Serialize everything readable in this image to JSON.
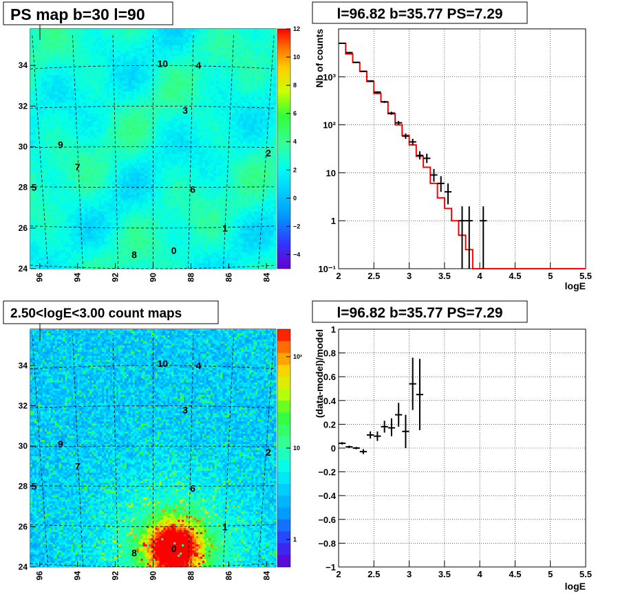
{
  "chart_data": [
    {
      "type": "heatmap",
      "title": "PS map b=30 l=90",
      "xlabel": "",
      "ylabel": "",
      "x_ticks": [
        "96",
        "94",
        "92",
        "90",
        "88",
        "86",
        "84"
      ],
      "y_ticks": [
        "24",
        "26",
        "28",
        "30",
        "32",
        "34"
      ],
      "xlim": [
        96.5,
        83.5
      ],
      "ylim": [
        24,
        35.8
      ],
      "colorbar": {
        "scale": "linear",
        "range": [
          -5,
          12
        ],
        "ticks": [
          "12",
          "10",
          "8",
          "6",
          "4",
          "2",
          "0",
          "−2",
          "−4"
        ]
      },
      "sources": [
        {
          "label": "10",
          "l": 89.5,
          "b": 34.1
        },
        {
          "label": "4",
          "l": 87.6,
          "b": 34.0
        },
        {
          "label": "3",
          "l": 88.3,
          "b": 31.8
        },
        {
          "label": "9",
          "l": 94.9,
          "b": 30.1
        },
        {
          "label": "2",
          "l": 83.9,
          "b": 29.7
        },
        {
          "label": "7",
          "l": 94.0,
          "b": 29.0
        },
        {
          "label": "5",
          "l": 96.3,
          "b": 28.0
        },
        {
          "label": "6",
          "l": 87.9,
          "b": 27.9
        },
        {
          "label": "1",
          "l": 86.2,
          "b": 26.0
        },
        {
          "label": "8",
          "l": 91.0,
          "b": 24.7
        },
        {
          "label": "0",
          "l": 88.9,
          "b": 24.9
        }
      ]
    },
    {
      "type": "line",
      "title": "l=96.82 b=35.77 PS=7.29",
      "xlabel": "logE",
      "ylabel": "Nb of counts",
      "xlim": [
        2,
        5.5
      ],
      "ylim": [
        0.1,
        10000
      ],
      "yscale": "log",
      "grid": true,
      "x_ticks": [
        "2",
        "2.5",
        "3",
        "3.5",
        "4",
        "4.5",
        "5",
        "5.5"
      ],
      "y_ticks": [
        {
          "v": 0.1,
          "t": "10⁻¹"
        },
        {
          "v": 1,
          "t": "1"
        },
        {
          "v": 10,
          "t": "10"
        },
        {
          "v": 100,
          "t": "10²"
        },
        {
          "v": 1000,
          "t": "10³"
        }
      ],
      "series": [
        {
          "kind": "model-histogram",
          "color": "#ff0000",
          "edges": [
            2.0,
            2.1,
            2.2,
            2.3,
            2.4,
            2.5,
            2.6,
            2.7,
            2.8,
            2.9,
            3.0,
            3.1,
            3.2,
            3.3,
            3.4,
            3.5,
            3.6,
            3.7,
            3.8,
            3.9,
            4.0,
            4.1,
            4.2,
            4.3,
            4.4,
            4.5,
            4.6,
            4.7,
            4.8,
            4.9,
            5.0,
            5.1,
            5.2,
            5.3,
            5.4,
            5.5
          ],
          "values": [
            5000,
            3000,
            2000,
            1300,
            800,
            450,
            300,
            170,
            100,
            60,
            38,
            22,
            13,
            6,
            3,
            1.8,
            1.0,
            0.5,
            0.25,
            0.1,
            0.1,
            0.1,
            0.1,
            0.1,
            0.1,
            0.1,
            0.1,
            0.1,
            0.1,
            0.1,
            0.1,
            0.1,
            0.1,
            0.1,
            0.1
          ]
        },
        {
          "kind": "data",
          "color": "#000000",
          "points": [
            {
              "x": 2.05,
              "y": 5000,
              "lo": 4900,
              "hi": 5100
            },
            {
              "x": 2.15,
              "y": 3200,
              "lo": 3100,
              "hi": 3300
            },
            {
              "x": 2.25,
              "y": 2000,
              "lo": 1950,
              "hi": 2050
            },
            {
              "x": 2.35,
              "y": 1300,
              "lo": 1260,
              "hi": 1340
            },
            {
              "x": 2.45,
              "y": 820,
              "lo": 790,
              "hi": 850
            },
            {
              "x": 2.55,
              "y": 480,
              "lo": 460,
              "hi": 500
            },
            {
              "x": 2.65,
              "y": 300,
              "lo": 285,
              "hi": 315
            },
            {
              "x": 2.75,
              "y": 175,
              "lo": 162,
              "hi": 188
            },
            {
              "x": 2.85,
              "y": 110,
              "lo": 100,
              "hi": 120
            },
            {
              "x": 2.95,
              "y": 58,
              "lo": 51,
              "hi": 66
            },
            {
              "x": 3.05,
              "y": 44,
              "lo": 38,
              "hi": 51
            },
            {
              "x": 3.15,
              "y": 23,
              "lo": 19,
              "hi": 28
            },
            {
              "x": 3.25,
              "y": 20,
              "lo": 16,
              "hi": 25
            },
            {
              "x": 3.35,
              "y": 9,
              "lo": 6.5,
              "hi": 12
            },
            {
              "x": 3.45,
              "y": 6,
              "lo": 4,
              "hi": 8.5
            },
            {
              "x": 3.55,
              "y": 4,
              "lo": 2.2,
              "hi": 6
            },
            {
              "x": 3.75,
              "y": 1,
              "lo": 0.1,
              "hi": 2
            },
            {
              "x": 3.85,
              "y": 1,
              "lo": 0.1,
              "hi": 2
            },
            {
              "x": 4.05,
              "y": 1,
              "lo": 0.1,
              "hi": 2
            }
          ]
        }
      ]
    },
    {
      "type": "heatmap",
      "title": "2.50<logE<3.00 count maps",
      "xlabel": "",
      "ylabel": "",
      "x_ticks": [
        "96",
        "94",
        "92",
        "90",
        "88",
        "86",
        "84"
      ],
      "y_ticks": [
        "24",
        "26",
        "28",
        "30",
        "32",
        "34"
      ],
      "xlim": [
        96.5,
        83.5
      ],
      "ylim": [
        24,
        35.8
      ],
      "colorbar": {
        "scale": "log",
        "range": [
          0.5,
          200
        ],
        "ticks": [
          "10²",
          "10",
          "1"
        ]
      },
      "bright_source": {
        "label": "0",
        "l": 88.9,
        "b": 24.9
      },
      "sources": [
        {
          "label": "10",
          "l": 89.5,
          "b": 34.1
        },
        {
          "label": "4",
          "l": 87.6,
          "b": 34.0
        },
        {
          "label": "3",
          "l": 88.3,
          "b": 31.8
        },
        {
          "label": "9",
          "l": 94.9,
          "b": 30.1
        },
        {
          "label": "2",
          "l": 83.9,
          "b": 29.7
        },
        {
          "label": "7",
          "l": 94.0,
          "b": 29.0
        },
        {
          "label": "5",
          "l": 96.3,
          "b": 28.0
        },
        {
          "label": "6",
          "l": 87.9,
          "b": 27.9
        },
        {
          "label": "1",
          "l": 86.2,
          "b": 26.0
        },
        {
          "label": "8",
          "l": 91.0,
          "b": 24.7
        },
        {
          "label": "0",
          "l": 88.9,
          "b": 24.9
        }
      ]
    },
    {
      "type": "scatter",
      "title": "l=96.82 b=35.77 PS=7.29",
      "xlabel": "logE",
      "ylabel": "(data-model)/model",
      "xlim": [
        2,
        5.5
      ],
      "ylim": [
        -1,
        1
      ],
      "grid": true,
      "x_ticks": [
        "2",
        "2.5",
        "3",
        "3.5",
        "4",
        "4.5",
        "5",
        "5.5"
      ],
      "y_ticks": [
        "1",
        "0.8",
        "0.6",
        "0.4",
        "0.2",
        "0",
        "−0.2",
        "−0.4",
        "−0.6",
        "−0.8",
        "−1"
      ],
      "series": [
        {
          "kind": "data",
          "color": "#000000",
          "points": [
            {
              "x": 2.05,
              "y": 0.04,
              "lo": 0.03,
              "hi": 0.05
            },
            {
              "x": 2.15,
              "y": 0.01,
              "lo": 0.0,
              "hi": 0.02
            },
            {
              "x": 2.25,
              "y": 0.0,
              "lo": -0.01,
              "hi": 0.01
            },
            {
              "x": 2.35,
              "y": -0.03,
              "lo": -0.05,
              "hi": -0.01
            },
            {
              "x": 2.45,
              "y": 0.11,
              "lo": 0.08,
              "hi": 0.14
            },
            {
              "x": 2.55,
              "y": 0.1,
              "lo": 0.06,
              "hi": 0.14
            },
            {
              "x": 2.65,
              "y": 0.18,
              "lo": 0.13,
              "hi": 0.23
            },
            {
              "x": 2.75,
              "y": 0.17,
              "lo": 0.1,
              "hi": 0.25
            },
            {
              "x": 2.85,
              "y": 0.28,
              "lo": 0.18,
              "hi": 0.38
            },
            {
              "x": 2.95,
              "y": 0.14,
              "lo": 0.0,
              "hi": 0.28
            },
            {
              "x": 3.05,
              "y": 0.54,
              "lo": 0.32,
              "hi": 0.76
            },
            {
              "x": 3.15,
              "y": 0.45,
              "lo": 0.15,
              "hi": 0.75
            }
          ]
        }
      ]
    }
  ]
}
